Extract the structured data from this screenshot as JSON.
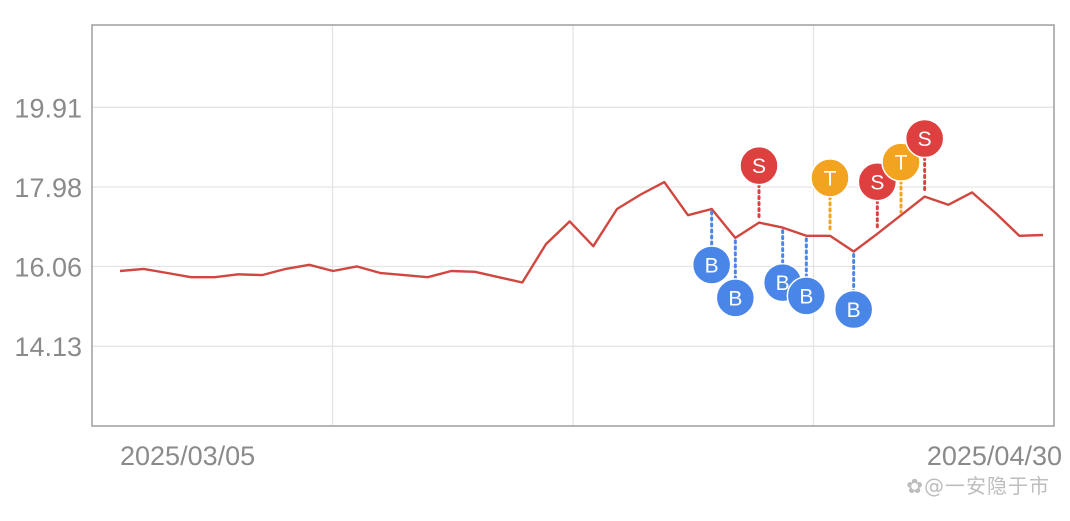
{
  "chart_data": {
    "type": "line",
    "x_tick_labels": [
      "2025/03/05",
      "2025/04/30"
    ],
    "y_ticks": [
      14.13,
      16.06,
      17.98,
      19.91
    ],
    "y_tick_labels": [
      "14.13",
      "16.06",
      "17.98",
      "19.91"
    ],
    "ylim": [
      12.2,
      21.9
    ],
    "grid": true,
    "series": [
      {
        "color": "#d0473f",
        "values": [
          15.95,
          16.0,
          15.9,
          15.8,
          15.8,
          15.87,
          15.85,
          16.0,
          16.1,
          15.95,
          16.06,
          15.9,
          15.85,
          15.8,
          15.95,
          15.93,
          15.8,
          15.67,
          16.6,
          17.15,
          16.55,
          17.45,
          17.8,
          18.1,
          17.3,
          17.45,
          16.75,
          17.12,
          17.0,
          16.8,
          16.8,
          16.42,
          16.85,
          17.3,
          17.75,
          17.55,
          17.85,
          17.35,
          16.8,
          16.82
        ]
      }
    ],
    "markers": [
      {
        "label": "B",
        "index": 25,
        "color": "#4a86e8",
        "position": "below"
      },
      {
        "label": "B",
        "index": 26,
        "color": "#4a86e8",
        "position": "below"
      },
      {
        "label": "S",
        "index": 27,
        "color": "#de3f3f",
        "position": "above"
      },
      {
        "label": "B",
        "index": 28,
        "color": "#4a86e8",
        "position": "below"
      },
      {
        "label": "B",
        "index": 29,
        "color": "#4a86e8",
        "position": "below"
      },
      {
        "label": "T",
        "index": 30,
        "color": "#f2a31f",
        "position": "above"
      },
      {
        "label": "B",
        "index": 31,
        "color": "#4a86e8",
        "position": "below"
      },
      {
        "label": "S",
        "index": 32,
        "color": "#de3f3f",
        "position": "above"
      },
      {
        "label": "T",
        "index": 33,
        "color": "#f2a31f",
        "position": "above"
      },
      {
        "label": "S",
        "index": 34,
        "color": "#de3f3f",
        "position": "above"
      }
    ]
  },
  "watermark": "✿@一安隐于市"
}
